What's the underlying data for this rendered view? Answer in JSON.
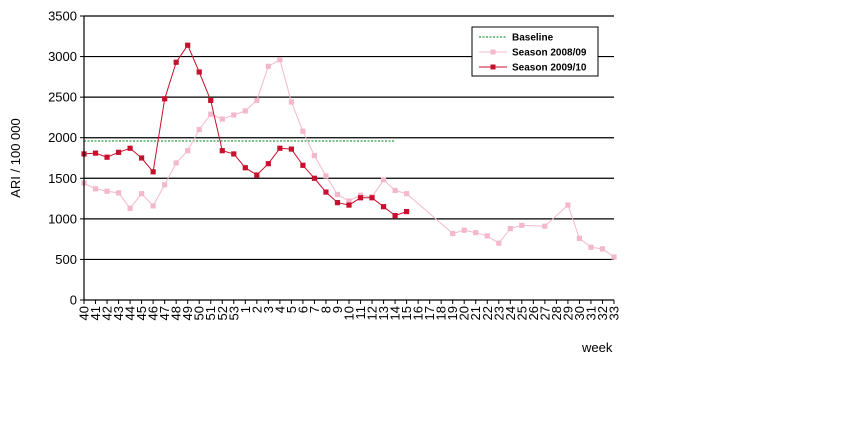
{
  "chart_data": {
    "type": "line",
    "ylabel": "ARI / 100 000",
    "xlabel": "week",
    "ylim": [
      0,
      3500
    ],
    "yticks": [
      0,
      500,
      1000,
      1500,
      2000,
      2500,
      3000,
      3500
    ],
    "grid": "horizontal",
    "legend_position": "top-right",
    "categories": [
      "40",
      "41",
      "42",
      "43",
      "44",
      "45",
      "46",
      "47",
      "48",
      "49",
      "50",
      "51",
      "52",
      "53",
      "1",
      "2",
      "3",
      "4",
      "5",
      "6",
      "7",
      "8",
      "9",
      "10",
      "11",
      "12",
      "13",
      "14",
      "15",
      "16",
      "17",
      "18",
      "19",
      "20",
      "21",
      "22",
      "23",
      "24",
      "25",
      "26",
      "27",
      "28",
      "29",
      "30",
      "31",
      "32",
      "33"
    ],
    "series": [
      {
        "name": "Baseline",
        "color": "#2e9e44",
        "style": "dashed",
        "values": [
          1960,
          1960,
          1960,
          1960,
          1960,
          1960,
          1960,
          1960,
          1960,
          1960,
          1960,
          1960,
          1960,
          1960,
          1960,
          1960,
          1960,
          1960,
          1960,
          1960,
          1960,
          1960,
          1960,
          1960,
          1960,
          1960,
          1960,
          1960,
          null,
          null,
          null,
          null,
          null,
          null,
          null,
          null,
          null,
          null,
          null,
          null,
          null,
          null,
          null,
          null,
          null,
          null,
          null
        ]
      },
      {
        "name": "Season 2008/09",
        "color": "#f4b8cc",
        "marker": "square",
        "values": [
          1440,
          1370,
          1340,
          1320,
          1130,
          1310,
          1160,
          1420,
          1690,
          1840,
          2100,
          2290,
          2230,
          2280,
          2330,
          2460,
          2880,
          2960,
          2440,
          2080,
          1780,
          1530,
          1300,
          1220,
          1290,
          1270,
          1480,
          1350,
          1310,
          null,
          null,
          null,
          820,
          860,
          830,
          790,
          700,
          880,
          920,
          null,
          910,
          null,
          1170,
          760,
          650,
          630,
          530
        ]
      },
      {
        "name": "Season 2009/10",
        "color": "#c8102e",
        "marker": "square",
        "values": [
          1800,
          1810,
          1760,
          1820,
          1870,
          1750,
          1580,
          2480,
          2930,
          3140,
          2810,
          2460,
          1840,
          1800,
          1630,
          1540,
          1680,
          1870,
          1860,
          1660,
          1500,
          1330,
          1200,
          1170,
          1260,
          1260,
          1150,
          1040,
          1090,
          null,
          null,
          null,
          null,
          null,
          null,
          null,
          null,
          null,
          null,
          null,
          null,
          null,
          null,
          null,
          null,
          null,
          null
        ]
      }
    ]
  }
}
